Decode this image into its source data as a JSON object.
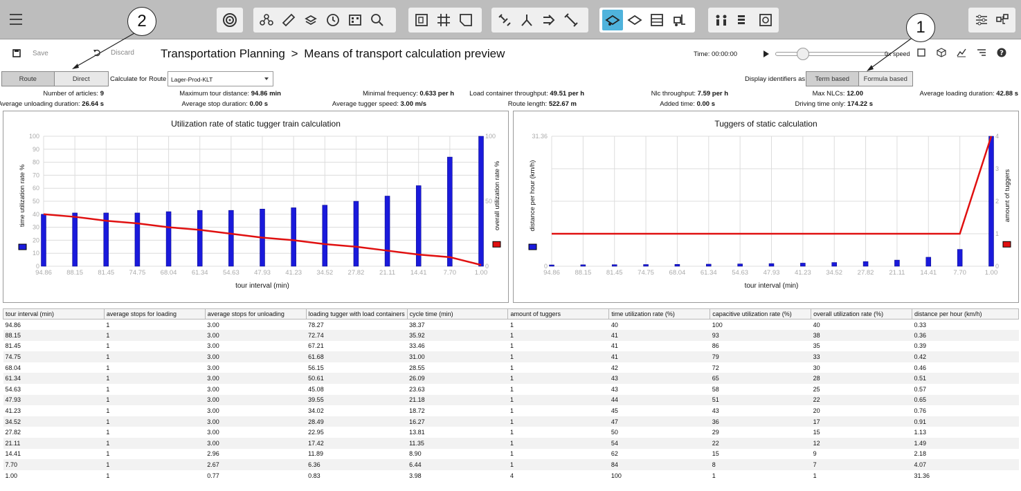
{
  "toolbar": {
    "menu_icon": "hamburger-menu-icon",
    "groups": [
      [
        "target-icon"
      ],
      [
        "nodes-icon",
        "ruler-icon",
        "layers-icon",
        "clock-icon",
        "matrix-icon",
        "zoom-search-icon"
      ],
      [
        "frame-icon",
        "grid-icon",
        "shape-icon"
      ],
      [
        "link-icon",
        "branch-icon",
        "route-arrow-icon",
        "chain-icon"
      ],
      [
        "tugger-icon",
        "trailer-icon",
        "rack-icon",
        "forklift-icon"
      ],
      [
        "workers-icon",
        "stack-icon",
        "screen-icon"
      ]
    ],
    "right_icons": [
      "sliders-icon",
      "mrf-hierarchy-icon"
    ]
  },
  "callouts": [
    "2",
    "1"
  ],
  "actions": {
    "save": "Save",
    "discard": "Discard"
  },
  "breadcrumb": {
    "root": "Transportation Planning",
    "separator": ">",
    "page": "Means of transport calculation preview"
  },
  "playback": {
    "time_label": "Time: 00:00:00",
    "speed_label": "0x speed"
  },
  "route_toggle": {
    "options": [
      "Route",
      "Direct"
    ],
    "selected": "Route"
  },
  "calc_route": {
    "label": "Calculate for Route",
    "value": "Lager-Prod-KLT"
  },
  "display_ident": {
    "label": "Display identifiers as",
    "options": [
      "Term based",
      "Formula based"
    ],
    "selected": "Term based"
  },
  "stats": {
    "row1": [
      {
        "label": "Number of articles:",
        "value": "9"
      },
      {
        "label": "Maximum tour distance:",
        "value": "94.86 min"
      },
      {
        "label": "Minimal frequency:",
        "value": "0.633 per h"
      },
      {
        "label": "Load container throughput:",
        "value": "49.51 per h"
      },
      {
        "label": "Nlc throughput:",
        "value": "7.59 per h"
      },
      {
        "label": "Max NLCs:",
        "value": "12.00"
      },
      {
        "label": "Average loading duration:",
        "value": "42.88 s"
      }
    ],
    "row2": [
      {
        "label": "Average unloading duration:",
        "value": "26.64 s"
      },
      {
        "label": "Average stop duration:",
        "value": "0.00 s"
      },
      {
        "label": "Average tugger speed:",
        "value": "3.00 m/s"
      },
      {
        "label": "Route length:",
        "value": "522.67 m"
      },
      {
        "label": "Added time:",
        "value": "0.00 s"
      },
      {
        "label": "Driving time only:",
        "value": "174.22 s"
      }
    ]
  },
  "chart_data": [
    {
      "type": "bar",
      "title": "Utilization rate of static tugger train calculation",
      "xlabel": "tour interval (min)",
      "ylabel": "time utilization rate %",
      "y2label": "overall utilization rate %",
      "categories": [
        "94.86",
        "88.15",
        "81.45",
        "74.75",
        "68.04",
        "61.34",
        "54.63",
        "47.93",
        "41.23",
        "34.52",
        "27.82",
        "21.11",
        "14.41",
        "7.70",
        "1.00"
      ],
      "y_ticks": [
        "0",
        "10",
        "20",
        "30",
        "40",
        "50",
        "60",
        "70",
        "80",
        "90",
        "100"
      ],
      "y2_ticks": [
        "0",
        "50",
        "100"
      ],
      "ylim": [
        0,
        100
      ],
      "series": [
        {
          "kind": "bar",
          "axis": "left",
          "color": "#1a1adb",
          "values": [
            40,
            41,
            41,
            41,
            42,
            43,
            43,
            44,
            45,
            47,
            50,
            54,
            62,
            84,
            100
          ]
        },
        {
          "kind": "line",
          "axis": "right",
          "color": "#e01010",
          "values": [
            40,
            38,
            35,
            33,
            30,
            28,
            25,
            22,
            20,
            17,
            15,
            12,
            9,
            7,
            1
          ]
        }
      ],
      "grid": true
    },
    {
      "type": "bar",
      "title": "Tuggers of static calculation",
      "xlabel": "tour interval (min)",
      "ylabel": "distance per hour (km/h)",
      "y2label": "amount of tuggers",
      "categories": [
        "94.86",
        "88.15",
        "81.45",
        "74.75",
        "68.04",
        "61.34",
        "54.63",
        "47.93",
        "41.23",
        "34.52",
        "27.82",
        "21.11",
        "14.41",
        "7.70",
        "1.00"
      ],
      "y_ticks": [
        "0",
        "31.36"
      ],
      "y2_ticks": [
        "0",
        "1",
        "2",
        "3",
        "4"
      ],
      "ylim": [
        0,
        31.36
      ],
      "y2lim": [
        0,
        4
      ],
      "series": [
        {
          "kind": "bar",
          "axis": "left",
          "color": "#1a1adb",
          "values": [
            0.33,
            0.36,
            0.39,
            0.42,
            0.46,
            0.51,
            0.57,
            0.65,
            0.76,
            0.91,
            1.13,
            1.49,
            2.18,
            4.07,
            31.36
          ]
        },
        {
          "kind": "line",
          "axis": "right",
          "color": "#e01010",
          "values": [
            1,
            1,
            1,
            1,
            1,
            1,
            1,
            1,
            1,
            1,
            1,
            1,
            1,
            1,
            4
          ]
        }
      ],
      "grid": true
    }
  ],
  "table": {
    "headers": [
      "tour interval (min)",
      "average stops for loading",
      "average stops for unloading",
      "loading tugger with load containers",
      "cycle time (min)",
      "amount of tuggers",
      "time utilization rate (%)",
      "capacitive utilization rate (%)",
      "overall utilization rate (%)",
      "distance per hour (km/h)"
    ],
    "rows": [
      [
        "94.86",
        "1",
        "3.00",
        "78.27",
        "38.37",
        "1",
        "40",
        "100",
        "40",
        "0.33"
      ],
      [
        "88.15",
        "1",
        "3.00",
        "72.74",
        "35.92",
        "1",
        "41",
        "93",
        "38",
        "0.36"
      ],
      [
        "81.45",
        "1",
        "3.00",
        "67.21",
        "33.46",
        "1",
        "41",
        "86",
        "35",
        "0.39"
      ],
      [
        "74.75",
        "1",
        "3.00",
        "61.68",
        "31.00",
        "1",
        "41",
        "79",
        "33",
        "0.42"
      ],
      [
        "68.04",
        "1",
        "3.00",
        "56.15",
        "28.55",
        "1",
        "42",
        "72",
        "30",
        "0.46"
      ],
      [
        "61.34",
        "1",
        "3.00",
        "50.61",
        "26.09",
        "1",
        "43",
        "65",
        "28",
        "0.51"
      ],
      [
        "54.63",
        "1",
        "3.00",
        "45.08",
        "23.63",
        "1",
        "43",
        "58",
        "25",
        "0.57"
      ],
      [
        "47.93",
        "1",
        "3.00",
        "39.55",
        "21.18",
        "1",
        "44",
        "51",
        "22",
        "0.65"
      ],
      [
        "41.23",
        "1",
        "3.00",
        "34.02",
        "18.72",
        "1",
        "45",
        "43",
        "20",
        "0.76"
      ],
      [
        "34.52",
        "1",
        "3.00",
        "28.49",
        "16.27",
        "1",
        "47",
        "36",
        "17",
        "0.91"
      ],
      [
        "27.82",
        "1",
        "3.00",
        "22.95",
        "13.81",
        "1",
        "50",
        "29",
        "15",
        "1.13"
      ],
      [
        "21.11",
        "1",
        "3.00",
        "17.42",
        "11.35",
        "1",
        "54",
        "22",
        "12",
        "1.49"
      ],
      [
        "14.41",
        "1",
        "2.96",
        "11.89",
        "8.90",
        "1",
        "62",
        "15",
        "9",
        "2.18"
      ],
      [
        "7.70",
        "1",
        "2.67",
        "6.36",
        "6.44",
        "1",
        "84",
        "8",
        "7",
        "4.07"
      ],
      [
        "1.00",
        "1",
        "0.77",
        "0.83",
        "3.98",
        "4",
        "100",
        "1",
        "1",
        "31.36"
      ]
    ]
  }
}
